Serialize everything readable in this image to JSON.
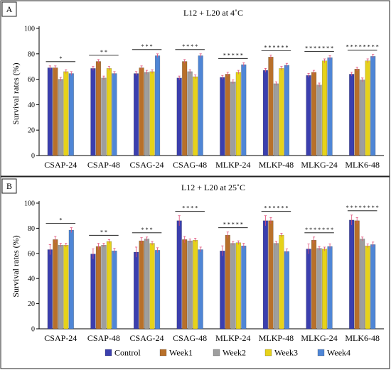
{
  "series_colors": [
    "#3b3fae",
    "#b8702a",
    "#9e9e9e",
    "#e6d21a",
    "#4f86d6"
  ],
  "legend": {
    "items": [
      "Control",
      "Week1",
      "Week2",
      "Week3",
      "Week4"
    ]
  },
  "chart_data": [
    {
      "type": "bar",
      "panel": "A",
      "title": "L12 + L20 at 4˚C",
      "ylabel": "Survival rates (%)",
      "ylim": [
        0,
        100
      ],
      "yticks": [
        0,
        20,
        40,
        60,
        80,
        100
      ],
      "categories": [
        "CSAP-24",
        "CSAP-48",
        "CSAG-24",
        "CSAG-48",
        "MLKP-24",
        "MLKP-48",
        "MLKG-24",
        "MLK6-48"
      ],
      "series": [
        {
          "name": "Control",
          "values": [
            69,
            68.5,
            64.5,
            61,
            61.5,
            67,
            63,
            64
          ],
          "errors": [
            1.5,
            1.5,
            1.5,
            1.5,
            1.5,
            1.5,
            1.5,
            1.5
          ]
        },
        {
          "name": "Week1",
          "values": [
            69,
            74,
            69,
            74,
            64,
            77.5,
            65.5,
            68
          ],
          "errors": [
            1.5,
            1.5,
            1.5,
            1.5,
            1.5,
            1.5,
            1.5,
            1.5
          ]
        },
        {
          "name": "Week2",
          "values": [
            60,
            61,
            65.5,
            66,
            58,
            56.5,
            55.5,
            59.5
          ],
          "errors": [
            1.5,
            1.5,
            1.5,
            1.5,
            1.5,
            1.5,
            1.5,
            1.5
          ]
        },
        {
          "name": "Week3",
          "values": [
            66,
            68.5,
            66,
            62,
            65.5,
            68.5,
            74.5,
            74.5
          ],
          "errors": [
            1.5,
            1.5,
            1.5,
            1.5,
            1.5,
            1.5,
            1.5,
            1.5
          ]
        },
        {
          "name": "Week4",
          "values": [
            64.5,
            64.5,
            78.5,
            78.5,
            71.5,
            71,
            77,
            78
          ],
          "errors": [
            1.5,
            1.5,
            1.5,
            1.5,
            1.5,
            1.5,
            1.5,
            1.5
          ]
        }
      ],
      "significance": [
        "*",
        "* *",
        "* * *",
        "* * * *",
        "* * * * *",
        "* * * * * *",
        "* * * * * * *",
        "* * * * * * * *"
      ]
    },
    {
      "type": "bar",
      "panel": "B",
      "title": "L12 + L20 at 25˚C",
      "ylabel": "Survival rates (%)",
      "ylim": [
        0,
        100
      ],
      "yticks": [
        0,
        20,
        40,
        60,
        80,
        100
      ],
      "categories": [
        "CSAP-24",
        "CSAP-48",
        "CSAG-24",
        "CSAG-48",
        "MLKP-24",
        "MLKP-48",
        "MLKG-24",
        "MLK6-48"
      ],
      "series": [
        {
          "name": "Control",
          "values": [
            63,
            59.5,
            61,
            86,
            62,
            86,
            63.5,
            86.5
          ],
          "errors": [
            4,
            4,
            4,
            4,
            4,
            4,
            4,
            4
          ]
        },
        {
          "name": "Week1",
          "values": [
            71,
            65.5,
            70,
            71,
            74.5,
            86,
            70.5,
            86
          ],
          "errors": [
            2.5,
            2.5,
            2.5,
            2.5,
            2.5,
            2.5,
            2.5,
            2.5
          ]
        },
        {
          "name": "Week2",
          "values": [
            66.5,
            66.5,
            71.5,
            70,
            68,
            68,
            64,
            71.5
          ],
          "errors": [
            1.5,
            1.5,
            1.5,
            1.5,
            1.5,
            1.5,
            1.5,
            1.5
          ]
        },
        {
          "name": "Week3",
          "values": [
            66.5,
            69.5,
            68,
            70.5,
            68.5,
            74.5,
            63.5,
            66
          ],
          "errors": [
            1.5,
            1.5,
            1.5,
            1.5,
            1.5,
            1.5,
            1.5,
            1.5
          ]
        },
        {
          "name": "Week4",
          "values": [
            78.5,
            62,
            62.5,
            63,
            66,
            61.5,
            65.5,
            67
          ],
          "errors": [
            2,
            2,
            2,
            2,
            2,
            2,
            2,
            2
          ]
        }
      ],
      "significance": [
        "*",
        "* *",
        "* * *",
        "* * * *",
        "* * * * *",
        "* * * * * *",
        "* * * * * * *",
        "* * * * * * * *"
      ]
    }
  ]
}
